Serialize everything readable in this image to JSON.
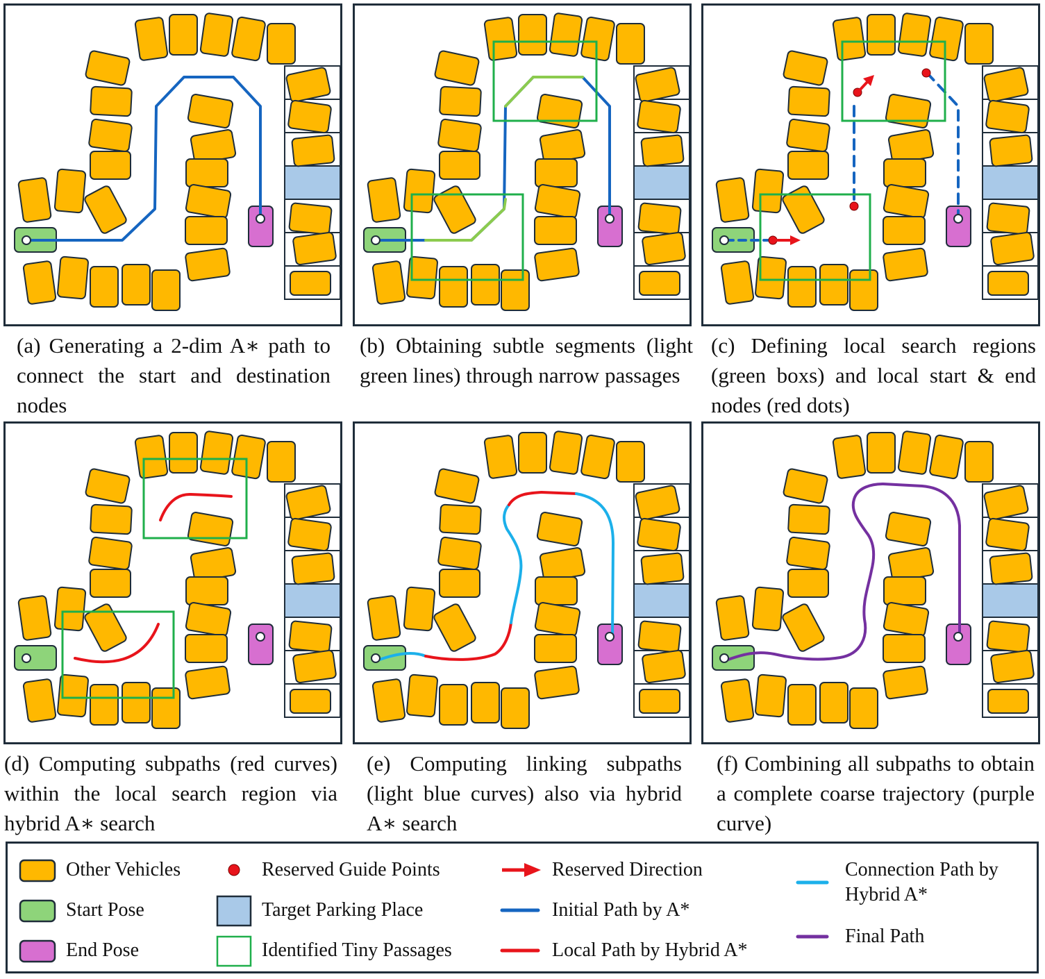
{
  "panels": [
    {
      "id": "a",
      "caption": "(a) Generating a 2-dim A∗ path to connect the start and destination nodes"
    },
    {
      "id": "b",
      "caption": "(b) Obtaining subtle segments (light green lines) through narrow passages"
    },
    {
      "id": "c",
      "caption": "(c) Defining local search regions (green boxs) and local start & end nodes (red dots)"
    },
    {
      "id": "d",
      "caption": "(d) Computing subpaths (red curves) within the local search region via hybrid A∗ search"
    },
    {
      "id": "e",
      "caption": "(e) Computing linking subpaths (light blue curves) also via hybrid A∗ search"
    },
    {
      "id": "f",
      "caption": "(f) Combining all subpaths to obtain a complete coarse trajectory (purple curve)"
    }
  ],
  "legend": {
    "other_vehicles": "Other Vehicles",
    "start_pose": "Start Pose",
    "end_pose": "End Pose",
    "reserved_guide_points": "Reserved Guide Points",
    "target_parking_place": "Target Parking Place",
    "identified_tiny_passages": "Identified Tiny Passages",
    "reserved_direction": "Reserved Direction",
    "initial_path": "Initial Path by A*",
    "local_path": "Local Path by Hybrid A*",
    "connection_path": "Connection Path by Hybrid A*",
    "final_path": "Final Path"
  },
  "colors": {
    "vehicle": "#FFB800",
    "start": "#8ED47A",
    "end": "#D76FD0",
    "target": "#A9C9E8",
    "initial_path": "#1565C0",
    "subtle_segment": "#8CCB4E",
    "passage_box": "#1FAF4B",
    "local_path": "#E8141B",
    "connection_path": "#1CB0EA",
    "final_path": "#7430A0",
    "guide_point": "#E8141B"
  }
}
